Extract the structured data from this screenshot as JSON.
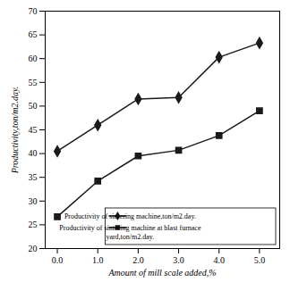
{
  "chart_data": {
    "type": "line",
    "x": [
      0,
      1,
      2,
      3,
      4,
      5
    ],
    "series": [
      {
        "name": "Productivity of sintering machine,ton/m2.day.",
        "color": "#1a1a1a",
        "marker": "diamond",
        "values": [
          40.5,
          46.0,
          51.5,
          51.8,
          60.3,
          63.3
        ]
      },
      {
        "name": "Productivity of sintering machine at blast furnace\nyard,ton/m2.day.",
        "color": "#1a1a1a",
        "marker": "square",
        "values": [
          26.7,
          34.2,
          39.5,
          40.7,
          43.8,
          49.0
        ]
      }
    ],
    "xlabel": "Amount of mill scale added,%",
    "ylabel": "Productivity,ton/m2.day.",
    "xlim": [
      -0.3,
      5.5
    ],
    "ylim": [
      20,
      70
    ],
    "xticks": [
      0,
      1,
      2,
      3,
      4,
      5
    ],
    "yticks": [
      20,
      25,
      30,
      35,
      40,
      45,
      50,
      55,
      60,
      65,
      70
    ],
    "grid": false,
    "legend": "lower right"
  }
}
